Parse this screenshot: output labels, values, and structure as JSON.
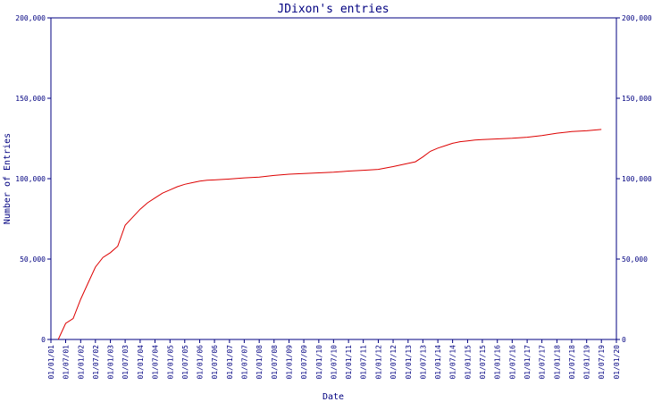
{
  "chart_data": {
    "type": "line",
    "title": "JDixon's entries",
    "xlabel": "Date",
    "ylabel": "Number of Entries",
    "ylim": [
      0,
      200000
    ],
    "y_ticks": [
      {
        "value": 0,
        "label": "0"
      },
      {
        "value": 50000,
        "label": "50,000"
      },
      {
        "value": 100000,
        "label": "100,000"
      },
      {
        "value": 150000,
        "label": "150,000"
      },
      {
        "value": 200000,
        "label": "200,000"
      }
    ],
    "right_axis": true,
    "grid": false,
    "x_ticks": [
      "01/01/01",
      "01/07/01",
      "01/01/02",
      "01/07/02",
      "01/01/03",
      "01/07/03",
      "01/01/04",
      "01/07/04",
      "01/01/05",
      "01/07/05",
      "01/01/06",
      "01/07/06",
      "01/01/07",
      "01/07/07",
      "01/01/08",
      "01/07/08",
      "01/01/09",
      "01/07/09",
      "01/01/10",
      "01/07/10",
      "01/01/11",
      "01/07/11",
      "01/01/12",
      "01/07/12",
      "01/01/13",
      "01/07/13",
      "01/01/14",
      "01/07/14",
      "01/01/15",
      "01/07/15",
      "01/01/16",
      "01/07/16",
      "01/01/17",
      "01/07/17",
      "01/01/18",
      "01/07/18",
      "01/01/19",
      "01/07/19",
      "01/01/20"
    ],
    "series": [
      {
        "name": "",
        "color": "#dd0000",
        "x": [
          "01/04/01",
          "01/07/01",
          "01/10/01",
          "01/01/02",
          "01/04/02",
          "01/07/02",
          "01/10/02",
          "01/01/03",
          "01/04/03",
          "01/07/03",
          "01/10/03",
          "01/01/04",
          "01/04/04",
          "01/07/04",
          "01/10/04",
          "01/01/05",
          "01/04/05",
          "01/07/05",
          "01/10/05",
          "01/01/06",
          "01/04/06",
          "01/07/06",
          "01/10/06",
          "01/01/07",
          "01/07/07",
          "01/01/08",
          "01/07/08",
          "01/01/09",
          "01/07/09",
          "01/01/10",
          "01/07/10",
          "01/01/11",
          "01/07/11",
          "01/01/12",
          "01/07/12",
          "01/01/13",
          "01/04/13",
          "01/07/13",
          "01/10/13",
          "01/01/14",
          "01/04/14",
          "01/07/14",
          "01/10/14",
          "01/01/15",
          "01/04/15",
          "01/07/15",
          "01/01/16",
          "01/07/16",
          "01/01/17",
          "01/07/17",
          "01/01/18",
          "01/07/18",
          "01/01/19",
          "01/07/19"
        ],
        "y": [
          0,
          10000,
          13000,
          25000,
          35000,
          45000,
          51000,
          54000,
          58000,
          71000,
          76000,
          81000,
          85000,
          88000,
          91000,
          93000,
          95000,
          96500,
          97500,
          98500,
          99000,
          99200,
          99500,
          99800,
          100500,
          101000,
          102000,
          102800,
          103200,
          103600,
          104000,
          104700,
          105200,
          105800,
          107500,
          109500,
          110500,
          113500,
          117000,
          119000,
          120500,
          122000,
          123000,
          123500,
          124000,
          124300,
          124700,
          125100,
          125800,
          126800,
          128300,
          129300,
          129800,
          130600
        ]
      }
    ]
  }
}
